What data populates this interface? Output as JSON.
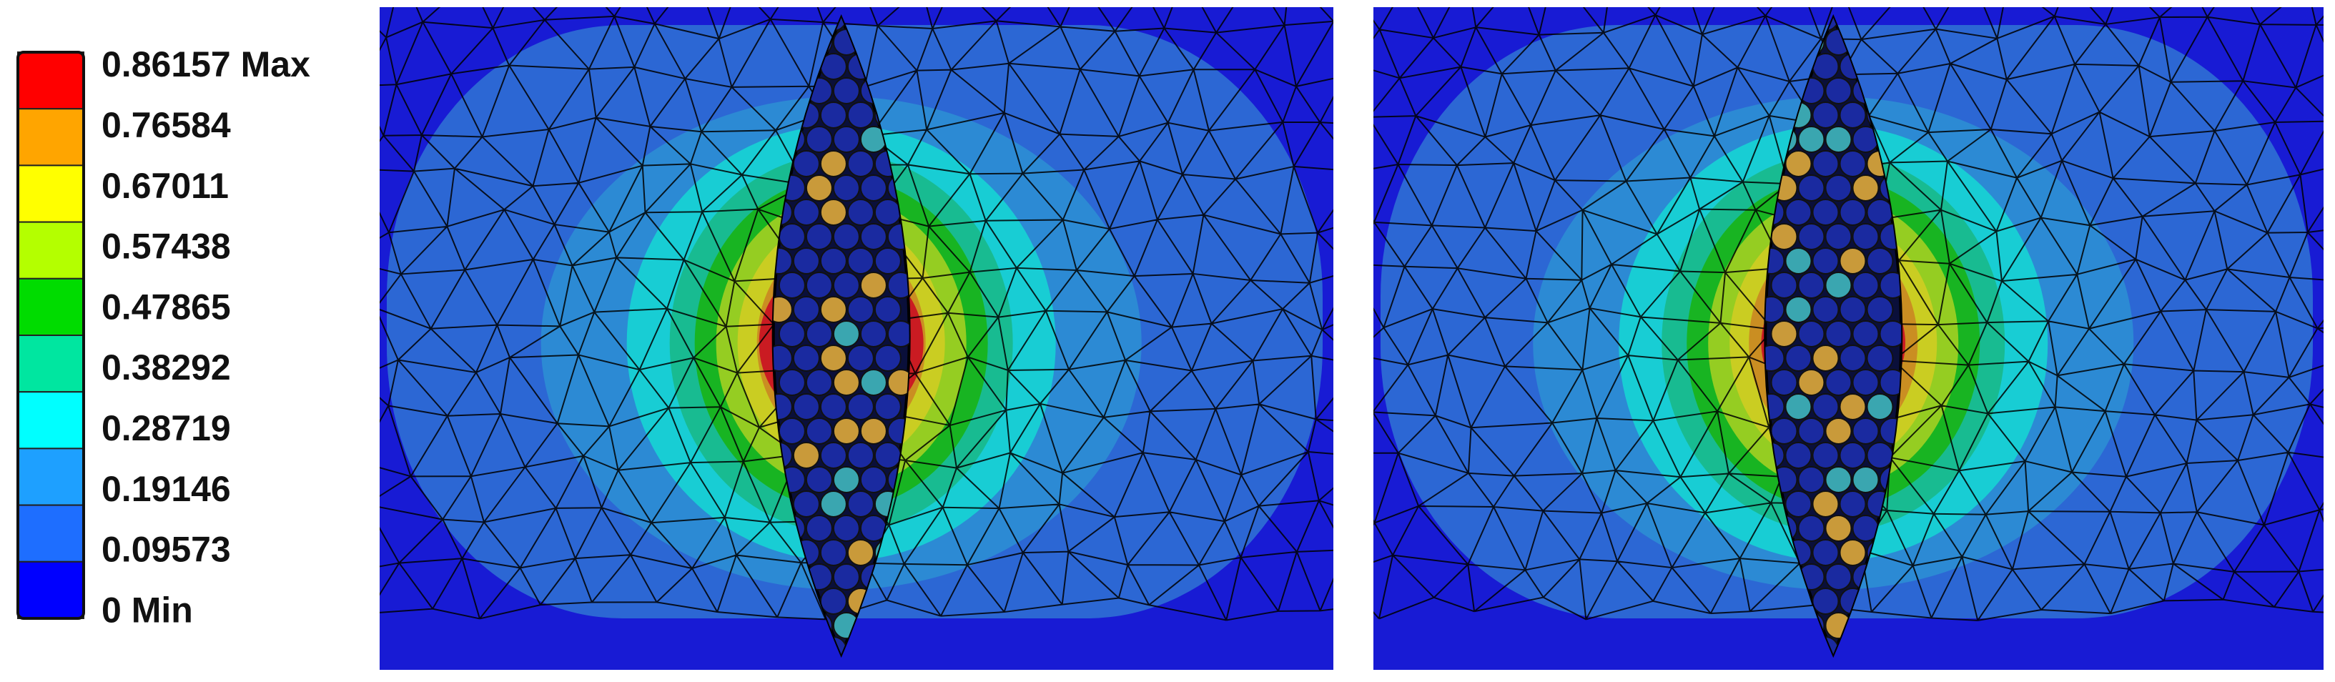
{
  "legend": {
    "levels": [
      {
        "value": 0.86157,
        "label": "0.86157 Max",
        "color": "#ff0000"
      },
      {
        "value": 0.76584,
        "label": "0.76584",
        "color": "#ffa500"
      },
      {
        "value": 0.67011,
        "label": "0.67011",
        "color": "#ffff00"
      },
      {
        "value": 0.57438,
        "label": "0.57438",
        "color": "#b4ff00"
      },
      {
        "value": 0.47865,
        "label": "0.47865",
        "color": "#00dc00"
      },
      {
        "value": 0.38292,
        "label": "0.38292",
        "color": "#00e6a0"
      },
      {
        "value": 0.28719,
        "label": "0.28719",
        "color": "#00ffff"
      },
      {
        "value": 0.19146,
        "label": "0.19146",
        "color": "#1ea0ff"
      },
      {
        "value": 0.09573,
        "label": "0.09573",
        "color": "#1e6eff"
      },
      {
        "value": 0,
        "label": "0 Min",
        "color": "#0000ff"
      }
    ]
  }
}
